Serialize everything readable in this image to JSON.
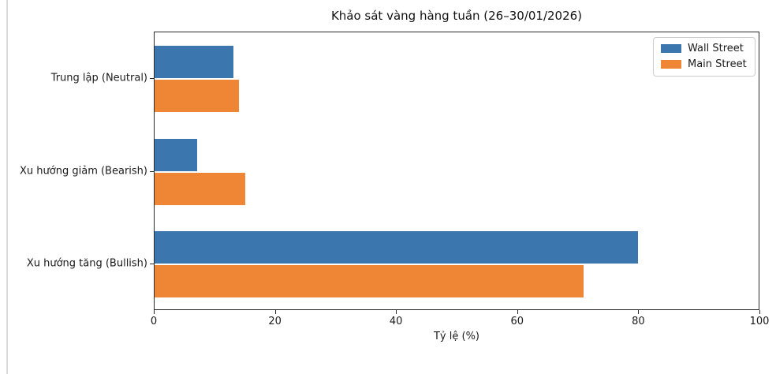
{
  "chart_data": {
    "type": "bar",
    "orientation": "horizontal",
    "title": "Khảo sát vàng hàng tuần (26–30/01/2026)",
    "xlabel": "Tỷ lệ (%)",
    "ylabel": "",
    "categories_top_to_bottom": [
      "Trung lập (Neutral)",
      "Xu hướng giảm (Bearish)",
      "Xu hướng tăng (Bullish)"
    ],
    "series": [
      {
        "name": "Wall Street",
        "color": "#3b76af",
        "values": [
          13,
          7,
          80
        ]
      },
      {
        "name": "Main Street",
        "color": "#ef8636",
        "values": [
          14,
          15,
          71
        ]
      }
    ],
    "xlim": [
      0,
      100
    ],
    "xticks": [
      0,
      20,
      40,
      60,
      80,
      100
    ],
    "legend_position": "upper right",
    "grid": false
  }
}
